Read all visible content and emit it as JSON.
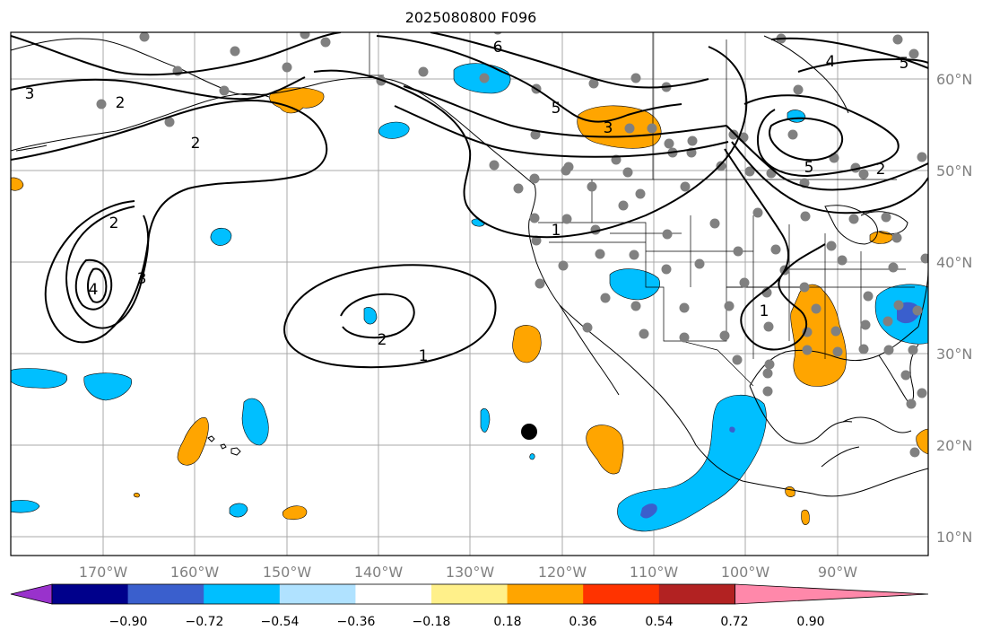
{
  "title": "2025080800 F096",
  "map": {
    "lon_labels": [
      "170°W",
      "160°W",
      "150°W",
      "140°W",
      "130°W",
      "120°W",
      "110°W",
      "100°W",
      "90°W"
    ],
    "lat_labels": [
      "60°N",
      "50°N",
      "40°N",
      "30°N",
      "20°N",
      "10°N"
    ],
    "contour_labels": [
      "3",
      "2",
      "2",
      "4",
      "3",
      "2",
      "1",
      "2",
      "1",
      "5",
      "6",
      "3",
      "5",
      "4",
      "5",
      "2",
      "1"
    ],
    "marker_note": "black dot (storm position)"
  },
  "colorbar": {
    "ticks": [
      "−0.90",
      "−0.72",
      "−0.54",
      "−0.36",
      "−0.18",
      "0.18",
      "0.36",
      "0.54",
      "0.72",
      "0.90"
    ],
    "colors": [
      "#9932cc",
      "#00008b",
      "#3a5fcd",
      "#00bfff",
      "#b0e2ff",
      "#ffffff",
      "#fff08a",
      "#ffa500",
      "#ff3300",
      "#b22222",
      "#ff88aa"
    ]
  },
  "colors": {
    "positive_anomaly": "#ffa500",
    "negative_anomaly": "#00bfff",
    "strong_negative": "#3a5fcd",
    "station_dot": "#808080",
    "grid": "#a9a9a9",
    "axis_label": "#808080"
  }
}
